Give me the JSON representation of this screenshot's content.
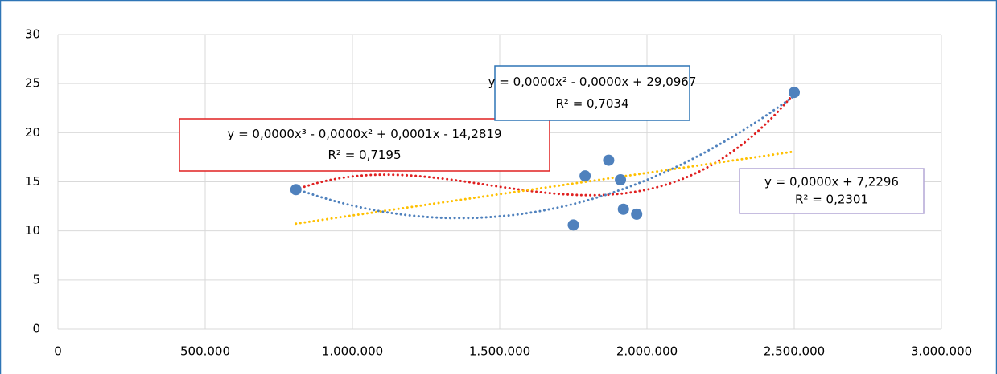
{
  "chart_data": {
    "type": "scatter",
    "xlim": [
      0,
      3000000
    ],
    "ylim": [
      0,
      30
    ],
    "xticks": [
      0,
      {
        "value": 500000,
        "label": "500.000"
      },
      {
        "value": 1000000,
        "label": "1.000.000"
      },
      {
        "value": 1500000,
        "label": "1.500.000"
      },
      {
        "value": 2000000,
        "label": "2.000.000"
      },
      {
        "value": 2500000,
        "label": "2.500.000"
      },
      {
        "value": 3000000,
        "label": "3.000.000"
      }
    ],
    "yticks": [
      0,
      5,
      10,
      15,
      20,
      25,
      30
    ],
    "grid": true,
    "series": [
      {
        "color": "#4f81bd",
        "x": [
          808000,
          1750000,
          1790000,
          1870000,
          1910000,
          1920000,
          1965000,
          2500000
        ],
        "values": [
          14.2,
          10.6,
          15.6,
          17.2,
          15.2,
          12.2,
          11.7,
          24.1
        ],
        "trendlines": [
          {
            "kind": "polynomial",
            "order": 3,
            "color": "#e02020",
            "box_color": "#e02020",
            "label": [
              "y = 0,0000x³ - 0,0000x² + 0,0001x - 14,2819",
              "R² = 0,7195"
            ]
          },
          {
            "kind": "polynomial",
            "order": 2,
            "color": "#4f81bd",
            "box_color": "#2e75b6",
            "label": [
              "y = 0,0000x² - 0,0000x + 29,0967",
              "R² = 0,7034"
            ]
          },
          {
            "kind": "linear",
            "order": 1,
            "color": "#ffc000",
            "box_color": "#b4a7d6",
            "label": [
              "y = 0,0000x + 7,2296",
              "R² = 0,2301"
            ]
          }
        ]
      }
    ]
  }
}
